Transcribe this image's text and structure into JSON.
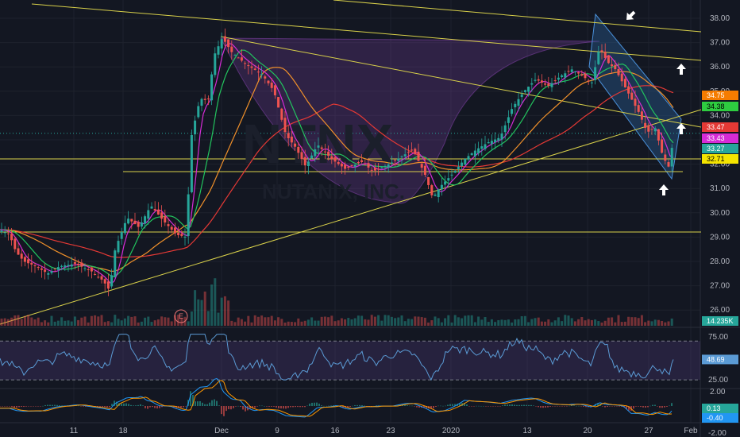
{
  "watermark": {
    "symbol": "NTNX",
    "name": "NUTANIX, INC."
  },
  "colors": {
    "background": "#131722",
    "grid": "#1e222d",
    "axis_text": "#b2b5be",
    "trendline": "#d8d04a",
    "cup": "#7b3fa0",
    "channel": "#2f6aa8",
    "up": "#26a69a",
    "down": "#ef5350",
    "ema_green": "#22c55e",
    "ema_magenta": "#d62bd6",
    "ema_orange": "#f0902a",
    "ema_red": "#e53935",
    "rsi": "#5b9bd5",
    "macd": "#2196f3",
    "signal": "#ff9800"
  },
  "chart_data": [
    {
      "type": "candlestick",
      "panel": "price",
      "ylim": [
        25.6,
        38.4
      ],
      "yticks": [
        "38.00",
        "37.00",
        "36.00",
        "35.00",
        "34.00",
        "33.00",
        "32.00",
        "31.00",
        "30.00",
        "29.00",
        "28.00",
        "27.00",
        "26.00"
      ],
      "xticks": [
        "11",
        "18",
        "Dec",
        "9",
        "16",
        "23",
        "2020",
        "13",
        "20",
        "27",
        "Feb"
      ],
      "price_badges": [
        {
          "label": "34.75",
          "value": 34.75,
          "color": "#f57c00",
          "text_color": "#ffffff"
        },
        {
          "label": "34.38",
          "value": 34.38,
          "color": "#2ecc40",
          "text_color": "#000000"
        },
        {
          "label": "33.47",
          "value": 33.47,
          "color": "#e53935",
          "text_color": "#ffffff"
        },
        {
          "label": "33.43",
          "value": 33.43,
          "color": "#d62bd6",
          "text_color": "#ffffff"
        },
        {
          "label": "33.27",
          "value": 33.27,
          "color": "#26a69a",
          "text_color": "#ffffff"
        },
        {
          "label": "32.71",
          "value": 32.71,
          "color": "#f5e400",
          "text_color": "#000000"
        }
      ],
      "path": [
        [
          0,
          29.3
        ],
        [
          12,
          29.1
        ],
        [
          20,
          28.4
        ],
        [
          30,
          28.0
        ],
        [
          45,
          27.8
        ],
        [
          60,
          27.5
        ],
        [
          75,
          27.8
        ],
        [
          95,
          27.9
        ],
        [
          115,
          27.6
        ],
        [
          130,
          27.2
        ],
        [
          138,
          26.8
        ],
        [
          145,
          28.5
        ],
        [
          160,
          29.8
        ],
        [
          175,
          29.4
        ],
        [
          190,
          30.3
        ],
        [
          205,
          29.7
        ],
        [
          222,
          29.1
        ],
        [
          235,
          29.0
        ],
        [
          240,
          33.0
        ],
        [
          252,
          34.7
        ],
        [
          262,
          34.6
        ],
        [
          270,
          36.5
        ],
        [
          280,
          37.2
        ],
        [
          292,
          36.6
        ],
        [
          310,
          36.1
        ],
        [
          330,
          35.7
        ],
        [
          345,
          35.0
        ],
        [
          360,
          33.2
        ],
        [
          372,
          32.7
        ],
        [
          385,
          31.9
        ],
        [
          400,
          32.8
        ],
        [
          418,
          32.2
        ],
        [
          435,
          31.8
        ],
        [
          455,
          32.1
        ],
        [
          470,
          31.7
        ],
        [
          490,
          32.0
        ],
        [
          505,
          32.3
        ],
        [
          520,
          32.6
        ],
        [
          535,
          31.6
        ],
        [
          545,
          30.6
        ],
        [
          555,
          31.1
        ],
        [
          570,
          31.6
        ],
        [
          585,
          32.2
        ],
        [
          600,
          32.6
        ],
        [
          615,
          32.9
        ],
        [
          630,
          33.1
        ],
        [
          645,
          34.3
        ],
        [
          660,
          35.0
        ],
        [
          675,
          35.5
        ],
        [
          690,
          35.2
        ],
        [
          705,
          35.6
        ],
        [
          720,
          35.9
        ],
        [
          735,
          35.6
        ],
        [
          745,
          35.3
        ],
        [
          755,
          36.8
        ],
        [
          765,
          36.2
        ],
        [
          775,
          35.9
        ],
        [
          790,
          35.0
        ],
        [
          805,
          34.1
        ],
        [
          815,
          33.3
        ],
        [
          825,
          33.5
        ],
        [
          835,
          32.3
        ],
        [
          842,
          31.9
        ],
        [
          848,
          33.0
        ]
      ],
      "volume_label": "14.235K",
      "earnings_marker": "E"
    },
    {
      "type": "line",
      "panel": "rsi",
      "ylim": [
        15,
        85
      ],
      "yticks": [
        "75.00",
        "25.00"
      ],
      "current_label": "48.69",
      "current_value": 48.69,
      "bands": [
        25,
        70
      ]
    },
    {
      "type": "line",
      "panel": "macd",
      "yticks": [
        "2.00",
        "-2.00"
      ],
      "badges": [
        {
          "label": "0.13",
          "value": 0.13,
          "color": "#26a69a",
          "text_color": "#ffffff"
        },
        {
          "label": "-0.40",
          "value": -0.4,
          "color": "#2196f3",
          "text_color": "#ffffff"
        }
      ]
    }
  ]
}
